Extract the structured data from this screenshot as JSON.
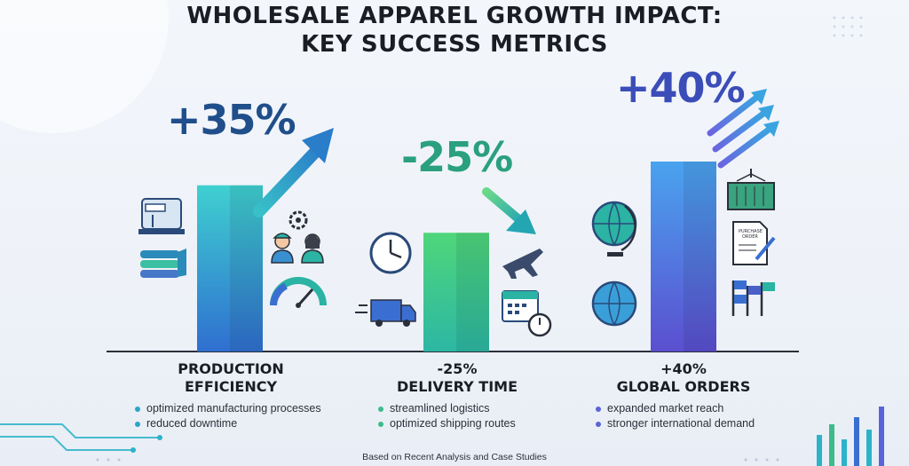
{
  "chart_data": {
    "type": "bar",
    "title_line1": "WHOLESALE APPAREL GROWTH IMPACT:",
    "title_line2": "KEY SUCCESS METRICS",
    "categories": [
      {
        "big_label": "+35%",
        "value": 35,
        "label_line1": "PRODUCTION",
        "label_line2": "EFFICIENCY",
        "bullets": [
          "optimized manufacturing processes",
          "reduced downtime"
        ],
        "color": "#2aa6c6"
      },
      {
        "big_label": "-25%",
        "value": 25,
        "label_line1": "-25%",
        "label_line2": "DELIVERY TIME",
        "bullets": [
          "streamlined logistics",
          "optimized shipping routes"
        ],
        "color": "#3dbb8a"
      },
      {
        "big_label": "+40%",
        "value": 40,
        "label_line1": "+40%",
        "label_line2": "GLOBAL ORDERS",
        "bullets": [
          "expanded market reach",
          "stronger international demand"
        ],
        "color": "#5a64d8"
      }
    ],
    "footnote": "Based on Recent Analysis and Case Studies",
    "colors": {
      "teal": "#2aa6c6",
      "green": "#3dbb8a",
      "indigo": "#5a64d8",
      "navy": "#233a6b"
    }
  }
}
